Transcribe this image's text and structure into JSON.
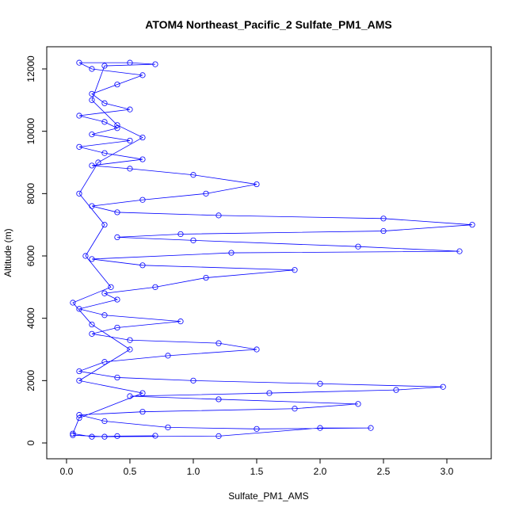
{
  "chart_data": {
    "type": "line",
    "title": "ATOM4 Northeast_Pacific_2 Sulfate_PM1_AMS",
    "x_label": "Sulfate_PM1_AMS",
    "y_label": "Altitude (m)",
    "x": [
      0.05,
      0.3,
      1.2,
      2.0,
      2.4,
      1.5,
      0.8,
      0.3,
      0.1,
      0.6,
      1.8,
      2.3,
      1.2,
      0.5,
      1.6,
      2.6,
      2.97,
      2.0,
      1.0,
      0.4,
      0.1,
      0.3,
      0.8,
      1.5,
      1.2,
      0.5,
      0.2,
      0.4,
      0.9,
      0.3,
      0.1,
      0.4,
      0.3,
      0.7,
      1.1,
      1.8,
      0.6,
      0.2,
      1.3,
      3.1,
      2.3,
      1.0,
      0.4,
      0.9,
      2.5,
      3.2,
      2.5,
      1.2,
      0.4,
      0.2,
      0.6,
      1.1,
      1.5,
      1.0,
      0.5,
      0.2,
      0.6,
      0.3,
      0.1,
      0.5,
      0.2,
      0.4,
      0.3,
      0.1,
      0.5,
      0.3,
      0.2,
      0.4,
      0.6,
      0.2,
      0.1,
      0.5,
      0.7,
      0.3,
      0.2,
      0.4,
      0.6,
      0.25,
      0.1,
      0.3,
      0.15,
      0.35,
      0.05,
      0.2,
      0.5,
      0.1,
      0.6,
      0.1,
      0.05,
      0.2,
      0.4,
      0.7
    ],
    "series": [
      {
        "color": "#0000ff",
        "values": [
          250,
          200,
          220,
          480,
          480,
          450,
          500,
          700,
          900,
          1000,
          1100,
          1250,
          1400,
          1500,
          1600,
          1700,
          1800,
          1900,
          2000,
          2100,
          2300,
          2600,
          2800,
          3000,
          3200,
          3300,
          3500,
          3700,
          3900,
          4100,
          4300,
          4600,
          4800,
          5000,
          5300,
          5550,
          5700,
          5900,
          6100,
          6150,
          6300,
          6500,
          6600,
          6700,
          6800,
          7000,
          7200,
          7300,
          7400,
          7600,
          7800,
          8000,
          8300,
          8600,
          8800,
          8900,
          9100,
          9300,
          9500,
          9700,
          9900,
          10100,
          10300,
          10500,
          10700,
          10900,
          11200,
          11500,
          11800,
          12000,
          12200,
          12200,
          12150,
          12100,
          11000,
          10200,
          9800,
          9000,
          8000,
          7000,
          6000,
          5000,
          4500,
          3800,
          3000,
          2000,
          1600,
          800,
          300,
          200,
          220,
          230
        ]
      }
    ],
    "xlim": [
      -0.156,
      3.35
    ],
    "ylim": [
      -508,
      12712
    ],
    "xticks": [
      {
        "value": 0,
        "label": "0.0"
      },
      0.5,
      {
        "value": 1,
        "label": "1.0"
      },
      1.5,
      {
        "value": 2,
        "label": "2.0"
      },
      2.5,
      {
        "value": 3,
        "label": "3.0"
      }
    ],
    "yticks": [
      0,
      2000,
      4000,
      6000,
      8000,
      10000,
      12000
    ]
  }
}
